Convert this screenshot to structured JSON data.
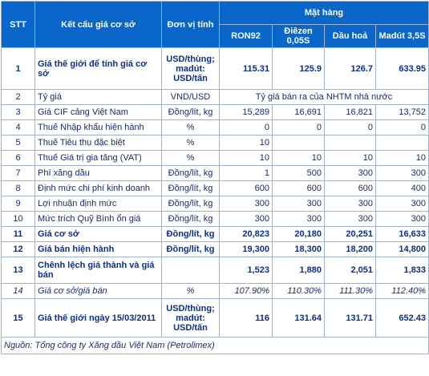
{
  "table": {
    "header": {
      "stt": "STT",
      "label": "Kết cấu giá cơ sở",
      "unit": "Đơn vị tính",
      "group": "Mặt hàng",
      "products": [
        "RON92",
        "Điêzen 0,05S",
        "Dầu hoả",
        "Madút 3,5S"
      ]
    },
    "rows": [
      {
        "stt": "1",
        "label": "Giá thế giới để tính giá cơ sở",
        "unit": "USD/thùng; madút: USD/tấn",
        "values": [
          "115.31",
          "125.9",
          "126.7",
          "633.95"
        ]
      },
      {
        "stt": "2",
        "label": "Tỷ giá",
        "unit": "VND/USD",
        "note": "Tỷ giá bán ra của NHTM nhà nước"
      },
      {
        "stt": "3",
        "label": "Giá CIF cảng Việt Nam",
        "unit": "Đồng/lít, kg",
        "values": [
          "15,289",
          "16,691",
          "16,821",
          "13,752"
        ]
      },
      {
        "stt": "4",
        "label": "Thuế Nhập khẩu hiện hành",
        "unit": "%",
        "values": [
          "0",
          "0",
          "0",
          "0"
        ]
      },
      {
        "stt": "5",
        "label": "Thuế Tiêu thụ đặc biệt",
        "unit": "%",
        "values": [
          "10"
        ]
      },
      {
        "stt": "6",
        "label": "Thuế Giá trị gia tăng (VAT)",
        "unit": "%",
        "values": [
          "10",
          "10",
          "10",
          "10"
        ]
      },
      {
        "stt": "7",
        "label": "Phí xăng dầu",
        "unit": "Đồng/lít, kg",
        "values": [
          "1",
          "500",
          "300",
          "300"
        ]
      },
      {
        "stt": "8",
        "label": "Định mức chi phí kinh doanh",
        "unit": "Đồng/lít, kg",
        "values": [
          "600",
          "600",
          "600",
          "400"
        ]
      },
      {
        "stt": "9",
        "label": "Lợi nhuận định mức",
        "unit": "Đồng/lít, kg",
        "values": [
          "300",
          "300",
          "300",
          "300"
        ]
      },
      {
        "stt": "10",
        "label": "Mức trích Quỹ Bình ổn giá",
        "unit": "Đồng/lít, kg",
        "values": [
          "300",
          "300",
          "300",
          "300"
        ]
      },
      {
        "stt": "11",
        "label": "Giá cơ sở",
        "unit": "Đồng/lít, kg",
        "values": [
          "20,823",
          "20,180",
          "20,251",
          "16,633"
        ]
      },
      {
        "stt": "12",
        "label": "Giá bán hiện hành",
        "unit": "Đồng/lít, kg",
        "values": [
          "19,300",
          "18,300",
          "18,200",
          "14,800"
        ]
      },
      {
        "stt": "13",
        "label": "Chênh lệch giá thành và giá bán",
        "values": [
          "1,523",
          "1,880",
          "2,051",
          "1,833"
        ]
      },
      {
        "stt": "14",
        "label": "Giá cơ sở/giá bán",
        "unit": "%",
        "values": [
          "107.90%",
          "110.30%",
          "111.30%",
          "112.40%"
        ]
      },
      {
        "stt": "15",
        "label": "Giá thế giới ngày 15/03/2011",
        "unit": "USD/thùng; madút: USD/tấn",
        "values": [
          "116",
          "131.64",
          "131.71",
          "652.43"
        ]
      }
    ],
    "source": "Nguồn: Tổng công ty Xăng dầu Việt Nam (Petrolimex)"
  }
}
